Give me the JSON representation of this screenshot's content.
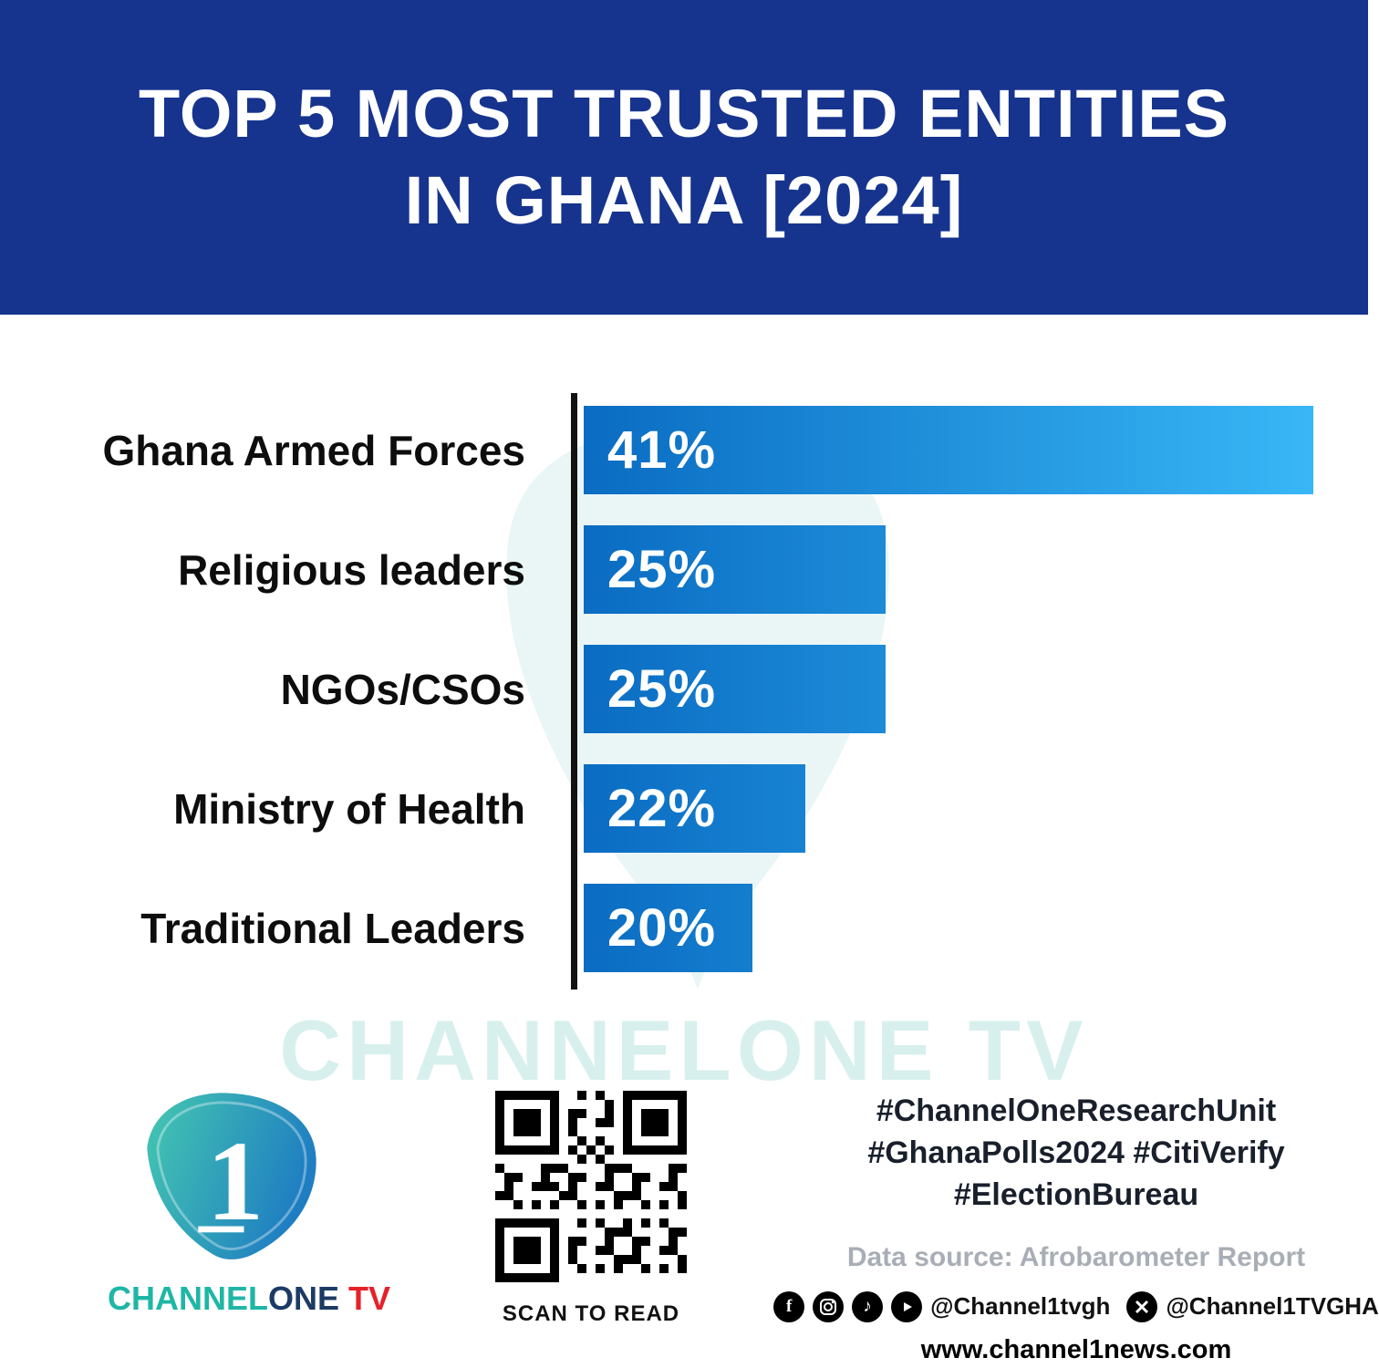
{
  "header": {
    "title_line1": "TOP 5 MOST TRUSTED ENTITIES",
    "title_line2": "IN GHANA [2024]",
    "bg_color": "#16348e"
  },
  "chart_data": {
    "type": "bar",
    "orientation": "horizontal",
    "title": "Top 5 Most Trusted Entities in Ghana [2024]",
    "categories": [
      "Ghana Armed Forces",
      "Religious leaders",
      "NGOs/CSOs",
      "Ministry of Health",
      "Traditional Leaders"
    ],
    "values": [
      41,
      25,
      25,
      22,
      20
    ],
    "value_labels": [
      "41%",
      "25%",
      "25%",
      "22%",
      "20%"
    ],
    "unit": "%",
    "legend": false,
    "grid": false,
    "axis_color": "#121212",
    "bar_gradient": [
      "#0a6cc2",
      "#38b7f6"
    ],
    "visual_scale": {
      "note": "bar lengths in the source graphic are not zero-based",
      "zero_at_value": 13.7,
      "full_at_value": 41
    }
  },
  "watermark": {
    "text": "CHANNELONE TV",
    "color": "#a9ded9"
  },
  "footer": {
    "logo": {
      "one_glyph": "1",
      "brand_channel": "CHANNEL",
      "brand_one": "ONE",
      "brand_tv": " TV"
    },
    "qr": {
      "caption": "SCAN TO READ"
    },
    "hashtags": [
      "#ChannelOneResearchUnit",
      "#GhanaPolls2024 #CitiVerify",
      "#ElectionBureau"
    ],
    "source": "Data source: Afrobarometer Report",
    "social": {
      "icons": [
        "facebook-icon",
        "instagram-icon",
        "tiktok-icon",
        "youtube-icon",
        "x-icon"
      ],
      "handle_main": "@Channel1tvgh",
      "x_handle": "@Channel1TVGHA"
    },
    "website": "www.channel1news.com"
  }
}
